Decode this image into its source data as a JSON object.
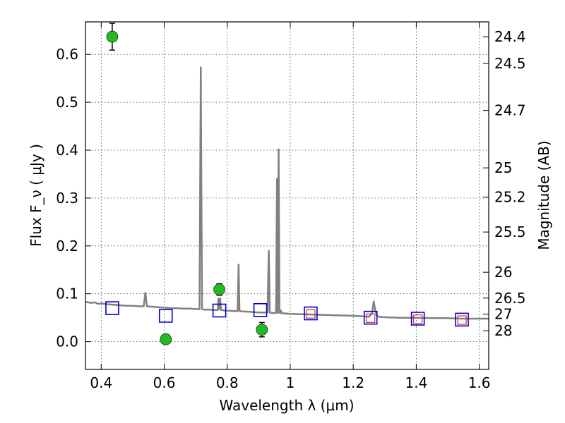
{
  "chart_data": {
    "type": "scatter",
    "xlabel": "Wavelength  λ (μm)",
    "ylabel": "Flux  F_ν  ( μJy )",
    "y2label": "Magnitude (AB)",
    "xlim": [
      0.35,
      1.63
    ],
    "ylim": [
      -0.058,
      0.668
    ],
    "x_ticks": [
      0.4,
      0.6,
      0.8,
      1.0,
      1.2,
      1.4,
      1.6
    ],
    "x_tick_labels": [
      "0.4",
      "0.6",
      "0.8",
      "1",
      "1.2",
      "1.4",
      "1.6"
    ],
    "y_ticks": [
      0.0,
      0.1,
      0.2,
      0.3,
      0.4,
      0.5,
      0.6
    ],
    "y_tick_labels": [
      "0.0",
      "0.1",
      "0.2",
      "0.3",
      "0.4",
      "0.5",
      "0.6"
    ],
    "mag_ticks": [
      {
        "label": "24.4",
        "flux": 0.637
      },
      {
        "label": "24.5",
        "flux": 0.581
      },
      {
        "label": "24.7",
        "flux": 0.483
      },
      {
        "label": "25",
        "flux": 0.363
      },
      {
        "label": "25.2",
        "flux": 0.302
      },
      {
        "label": "25.5",
        "flux": 0.229
      },
      {
        "label": "26",
        "flux": 0.145
      },
      {
        "label": "26.5",
        "flux": 0.091
      },
      {
        "label": "27",
        "flux": 0.0575
      },
      {
        "label": "28",
        "flux": 0.0229
      }
    ],
    "grid": true,
    "series": [
      {
        "kind": "spectrum",
        "color": "#808080",
        "x": [
          0.35,
          0.37,
          0.38,
          0.39,
          0.4,
          0.42,
          0.44,
          0.46,
          0.48,
          0.5,
          0.52,
          0.535,
          0.54,
          0.545,
          0.56,
          0.58,
          0.6,
          0.62,
          0.64,
          0.66,
          0.68,
          0.7,
          0.712,
          0.716,
          0.718,
          0.72,
          0.724,
          0.74,
          0.76,
          0.77,
          0.772,
          0.775,
          0.778,
          0.78,
          0.785,
          0.79,
          0.8,
          0.82,
          0.833,
          0.836,
          0.839,
          0.85,
          0.88,
          0.9,
          0.928,
          0.932,
          0.935,
          0.938,
          0.945,
          0.952,
          0.955,
          0.958,
          0.96,
          0.963,
          0.966,
          0.968,
          0.97,
          0.974,
          0.98,
          1.0,
          1.05,
          1.1,
          1.15,
          1.2,
          1.25,
          1.26,
          1.265,
          1.27,
          1.275,
          1.28,
          1.3,
          1.35,
          1.4,
          1.45,
          1.5,
          1.55,
          1.6,
          1.63
        ],
        "y": [
          0.083,
          0.081,
          0.082,
          0.079,
          0.08,
          0.078,
          0.077,
          0.076,
          0.075,
          0.075,
          0.074,
          0.074,
          0.102,
          0.074,
          0.073,
          0.072,
          0.071,
          0.07,
          0.07,
          0.069,
          0.069,
          0.068,
          0.068,
          0.573,
          0.3,
          0.068,
          0.067,
          0.067,
          0.066,
          0.066,
          0.09,
          0.068,
          0.09,
          0.066,
          0.066,
          0.065,
          0.065,
          0.064,
          0.064,
          0.161,
          0.064,
          0.063,
          0.062,
          0.061,
          0.061,
          0.19,
          0.061,
          0.06,
          0.06,
          0.06,
          0.06,
          0.34,
          0.06,
          0.402,
          0.06,
          0.06,
          0.065,
          0.059,
          0.059,
          0.058,
          0.057,
          0.056,
          0.055,
          0.054,
          0.052,
          0.06,
          0.084,
          0.065,
          0.055,
          0.052,
          0.051,
          0.05,
          0.05,
          0.049,
          0.049,
          0.048,
          0.048,
          0.048
        ]
      },
      {
        "kind": "model",
        "marker": "open-square",
        "color": "#0000cc",
        "x": [
          0.435,
          0.605,
          0.775,
          0.905,
          1.065,
          1.255,
          1.405,
          1.545
        ],
        "y": [
          0.07,
          0.054,
          0.065,
          0.066,
          0.059,
          0.05,
          0.048,
          0.046
        ]
      },
      {
        "kind": "observed-photometry",
        "marker": "open-square",
        "color": "#cc3333",
        "x": [
          1.065,
          1.255,
          1.405,
          1.545
        ],
        "y": [
          0.058,
          0.049,
          0.047,
          0.045
        ]
      },
      {
        "kind": "observed",
        "marker": "filled-circle",
        "color": "#22bb22",
        "x": [
          0.435,
          0.605,
          0.775,
          0.91
        ],
        "y": [
          0.637,
          0.005,
          0.109,
          0.025
        ],
        "yerr": [
          0.028,
          0.009,
          0.012,
          0.015
        ]
      }
    ]
  }
}
